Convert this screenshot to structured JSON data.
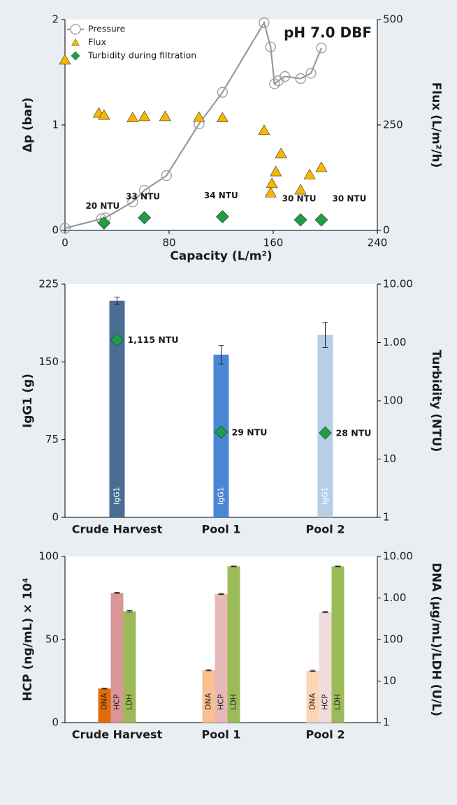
{
  "chart_data": [
    {
      "type": "scatter",
      "annotation": "pH 7.0 DBF",
      "x_label": "Capacity (L/m²)",
      "y_label": "Δp (bar)",
      "y2_label": "Flux (L/m²/h)",
      "xlim": [
        0,
        240
      ],
      "xticks": [
        0,
        80,
        160,
        240
      ],
      "ylim": [
        0,
        2
      ],
      "yticks": [
        0,
        1,
        2
      ],
      "y2lim": [
        0,
        500
      ],
      "y2ticks": [
        0,
        250,
        500
      ],
      "series": [
        {
          "name": "Pressure",
          "color": "#999999",
          "marker": "circle",
          "line": true,
          "x": [
            0,
            28,
            31,
            52,
            61,
            78,
            103,
            121,
            153,
            158,
            161,
            164,
            169,
            181,
            189,
            197
          ],
          "values": [
            0.02,
            0.11,
            0.12,
            0.27,
            0.38,
            0.52,
            1.01,
            1.31,
            1.97,
            1.74,
            1.39,
            1.42,
            1.46,
            1.44,
            1.49,
            1.73
          ]
        },
        {
          "name": "Flux",
          "color": "#f5b800",
          "marker": "triangle",
          "axis": "y2",
          "x": [
            0,
            26,
            30,
            52,
            61,
            77,
            103,
            121,
            153,
            166,
            162,
            159,
            158,
            181,
            188,
            197
          ],
          "values": [
            404,
            278,
            273,
            267,
            270,
            270,
            268,
            267,
            237,
            182,
            139,
            111,
            89,
            96,
            132,
            149
          ]
        },
        {
          "name": "Turbidity during filtration",
          "color": "#1e9e48",
          "marker": "diamond",
          "x": [
            30,
            61,
            121,
            181,
            197
          ],
          "values": [
            0.07,
            0.12,
            0.13,
            0.1,
            0.1
          ],
          "annotations": [
            "20 NTU",
            "33 NTU",
            "34 NTU",
            "30 NTU",
            "30 NTU"
          ]
        }
      ]
    },
    {
      "type": "bar",
      "y_label": "IgG1 (g)",
      "y2_label": "Turbidity (NTU)",
      "categories": [
        "Crude Harvest",
        "Pool 1",
        "Pool 2"
      ],
      "ylim": [
        0,
        225
      ],
      "yticks": [
        0,
        75,
        150,
        225
      ],
      "y2lim": [
        1,
        10000
      ],
      "y2log": true,
      "y2ticks": [
        1,
        10,
        100,
        {
          "value": 1000,
          "label": "1.00"
        },
        {
          "value": 10000,
          "label": "10.00"
        }
      ],
      "series": [
        {
          "name": "IgG1",
          "colors": [
            "#4a6d96",
            "#4a86d4",
            "#b8cde6"
          ],
          "values": [
            209,
            157,
            176
          ],
          "errors": [
            3.5,
            9,
            12
          ]
        },
        {
          "color": "#1e9e48",
          "marker": "diamond",
          "axis": "y2",
          "values": [
            1115,
            29,
            28
          ],
          "value_labels": [
            "1,115 NTU",
            "29 NTU",
            "28 NTU"
          ]
        }
      ]
    },
    {
      "type": "grouped_bar",
      "y_label": "HCP (ng/mL) × 10⁴",
      "y2_label": "DNA (µg/mL)/LDH (U/L)",
      "categories": [
        "Crude Harvest",
        "Pool 1",
        "Pool 2"
      ],
      "ylim": [
        0,
        100
      ],
      "yticks": [
        0,
        50,
        100
      ],
      "y2lim": [
        1,
        10000
      ],
      "y2log": true,
      "y2ticks": [
        1,
        10,
        100,
        {
          "value": 1000,
          "label": "1.00"
        },
        {
          "value": 10000,
          "label": "10.00"
        }
      ],
      "series": [
        {
          "name": "DNA",
          "colors": [
            "#e36c0a",
            "#fac090",
            "#fcd5b4"
          ],
          "values": [
            20.5,
            31.5,
            31.2
          ],
          "errors": [
            0.3,
            0.3,
            0.3
          ]
        },
        {
          "name": "HCP",
          "colors": [
            "#d99694",
            "#e6b9b8",
            "#f2dcdb"
          ],
          "values": [
            78,
            77.5,
            66.5
          ],
          "errors": [
            0.3,
            0.4,
            0.4
          ]
        },
        {
          "name": "LDH",
          "colors": [
            "#9bbb59",
            "#9bbb59",
            "#9bbb59"
          ],
          "values": [
            67,
            94,
            94
          ],
          "errors": [
            0.5,
            0.2,
            0.2
          ]
        }
      ]
    }
  ]
}
